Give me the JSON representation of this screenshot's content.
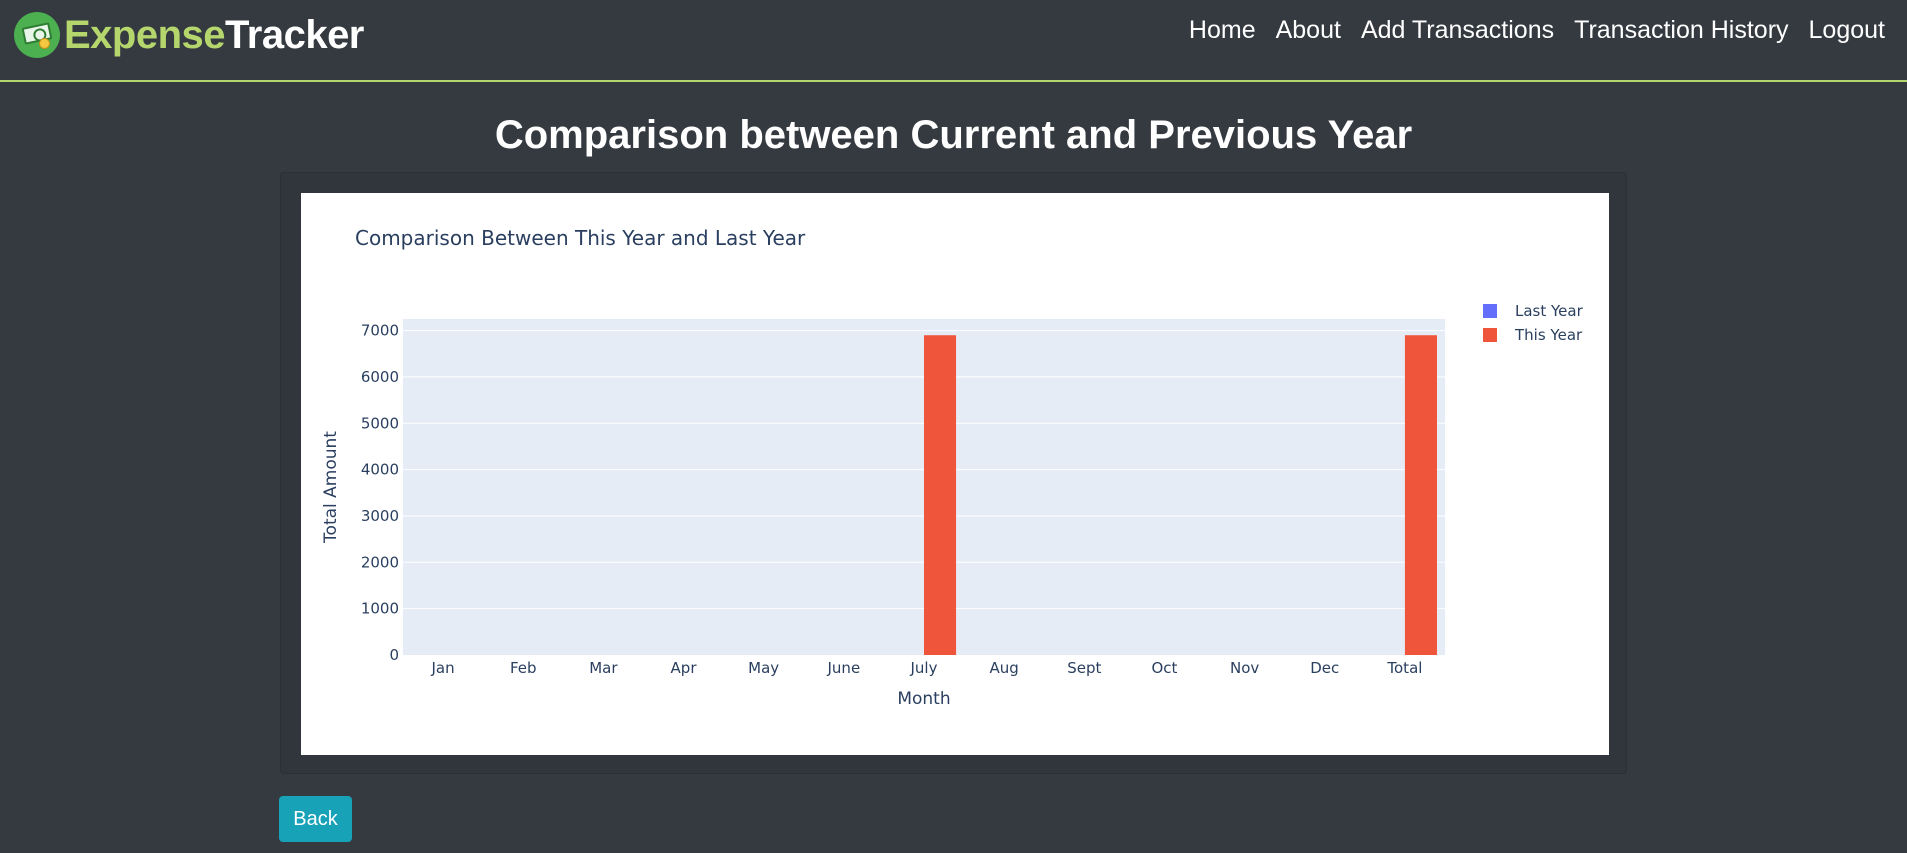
{
  "brand": {
    "part1": "Expense",
    "part2": "Tracker",
    "logo_icon": "money-logo-icon"
  },
  "nav": [
    {
      "label": "Home",
      "id": "home"
    },
    {
      "label": "About",
      "id": "about"
    },
    {
      "label": "Add Transactions",
      "id": "add-transactions"
    },
    {
      "label": "Transaction History",
      "id": "transaction-history"
    },
    {
      "label": "Logout",
      "id": "logout"
    }
  ],
  "page": {
    "title": "Comparison between Current and Previous Year"
  },
  "chart_data": {
    "type": "bar",
    "title": "Comparison Between This Year and Last Year",
    "xlabel": "Month",
    "ylabel": "Total Amount",
    "categories": [
      "Jan",
      "Feb",
      "Mar",
      "Apr",
      "May",
      "June",
      "July",
      "Aug",
      "Sept",
      "Oct",
      "Nov",
      "Dec",
      "Total"
    ],
    "series": [
      {
        "name": "Last Year",
        "color": "#636efa",
        "values": [
          0,
          0,
          0,
          0,
          0,
          0,
          0,
          0,
          0,
          0,
          0,
          0,
          0
        ]
      },
      {
        "name": "This Year",
        "color": "#ef553b",
        "values": [
          0,
          0,
          0,
          0,
          0,
          0,
          6900,
          0,
          0,
          0,
          0,
          0,
          6900
        ]
      }
    ],
    "ylim": [
      0,
      7250
    ],
    "yticks": [
      0,
      1000,
      2000,
      3000,
      4000,
      5000,
      6000,
      7000
    ],
    "grid": true,
    "legend_position": "top-right"
  },
  "actions": {
    "back_label": "Back"
  },
  "colors": {
    "accent": "#b5d66c",
    "background": "#343a40",
    "back_button": "#17a2b8",
    "plot_bg": "#e5ecf6"
  }
}
